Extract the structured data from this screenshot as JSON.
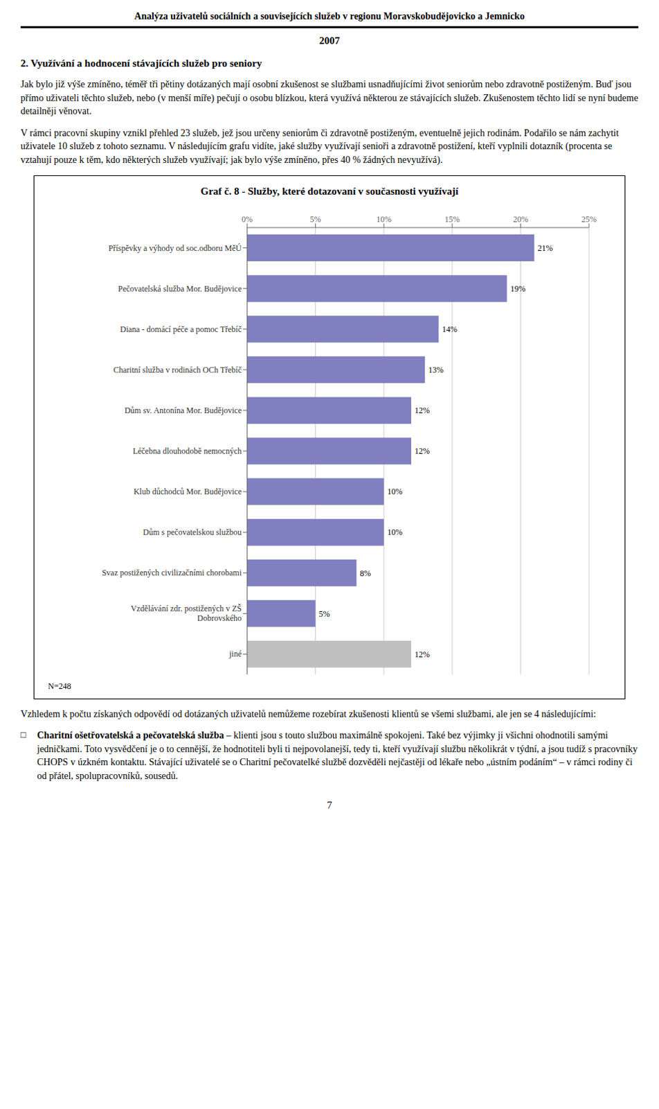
{
  "page_title": "Analýza uživatelů sociálních a souvisejících služeb v regionu Moravskobudějovicko a Jemnicko",
  "page_year": "2007",
  "section_title": "2. Využívání a hodnocení stávajících služeb pro seniory",
  "body_text": [
    "Jak bylo již výše zmíněno, téměř tři pětiny dotázaných mají osobní zkušenost se službami usnadňujícími život seniorům nebo zdravotně postiženým. Buď jsou přímo uživateli těchto služeb, nebo (v menší míře) pečují o osobu blízkou, která využívá některou ze stávajících služeb. Zkušenostem těchto lidí se nyní budeme detailněji věnovat.",
    "V rámci pracovní skupiny vznikl přehled 23 služeb, jež jsou určeny seniorům či zdravotně postiženým, eventuelně jejich rodinám. Podařilo se nám zachytit uživatele 10 služeb z tohoto seznamu. V následujícím grafu vidíte, jaké služby využívají senioři a zdravotně postižení, kteří vyplnili dotazník (procenta se vztahují pouze k těm, kdo některých služeb využívají; jak bylo výše zmíněno, přes 40 % žádných nevyužívá)."
  ],
  "bottom_text": "Vzhledem k počtu získaných odpovědí od dotázaných uživatelů nemůžeme rozebírat zkušenosti klientů se všemi službami, ale jen se 4 následujícími:",
  "bullet": "□",
  "bullet_bold": "Charitní ošetřovatelská a pečovatelská služba",
  "bullet_text": " – klienti jsou s touto službou maximálně spokojeni. Také bez výjimky ji všichni ohodnotili samými jedničkami. Toto vysvědčení je o to cennější, že hodnotiteli byli ti nejpovolanejší, tedy ti, kteří využívají službu několikrát v týdní, a jsou tudíž s pracovníky CHOPS v úzkném kontaktu. Stávající uživatelé se o Charitní pečovatelké službě dozvěděli nejčastěji od lékaře nebo „ústním podáním“ – v rámci rodiny či od přátel, spolupracovníků, sousedů.",
  "page_number": "7",
  "chart_data": {
    "type": "bar",
    "orientation": "horizontal",
    "title": "Graf č. 8 - Služby, které dotazovaní v současnosti využívají",
    "categories": [
      "Příspěvky a výhody od soc.odboru MěÚ",
      "Pečovatelská služba Mor. Budějovice",
      "Diana - domácí péče a pomoc Třebíč",
      "Charitní služba v rodinách OCh Třebíč",
      "Dům sv. Antonína Mor. Budějovice",
      "Léčebna dlouhodobě nemocných",
      "Klub důchodců Mor. Budějovice",
      "Dům s pečovatelskou službou",
      "Svaz postižených civilizačními chorobami",
      "Vzdělávání zdr. postižených v ZŠ\nDobrovského",
      "jiné"
    ],
    "values": [
      21,
      19,
      14,
      13,
      12,
      12,
      10,
      10,
      8,
      5,
      12
    ],
    "value_labels": [
      "21%",
      "19%",
      "14%",
      "13%",
      "12%",
      "12%",
      "10%",
      "10%",
      "8%",
      "5%",
      "12%"
    ],
    "data_labels": true,
    "colors": [
      "#8080c0",
      "#8080c0",
      "#8080c0",
      "#8080c0",
      "#8080c0",
      "#8080c0",
      "#8080c0",
      "#8080c0",
      "#8080c0",
      "#8080c0",
      "#c0c0c0"
    ],
    "xlim": [
      0,
      25
    ],
    "xticks": [
      {
        "value": 0,
        "label": "0%"
      },
      {
        "value": 5,
        "label": "5%"
      },
      {
        "value": 10,
        "label": "10%"
      },
      {
        "value": 15,
        "label": "15%"
      },
      {
        "value": 20,
        "label": "20%"
      },
      {
        "value": 25,
        "label": "25%"
      }
    ],
    "grid": true,
    "annotations": [
      "N=248"
    ]
  }
}
